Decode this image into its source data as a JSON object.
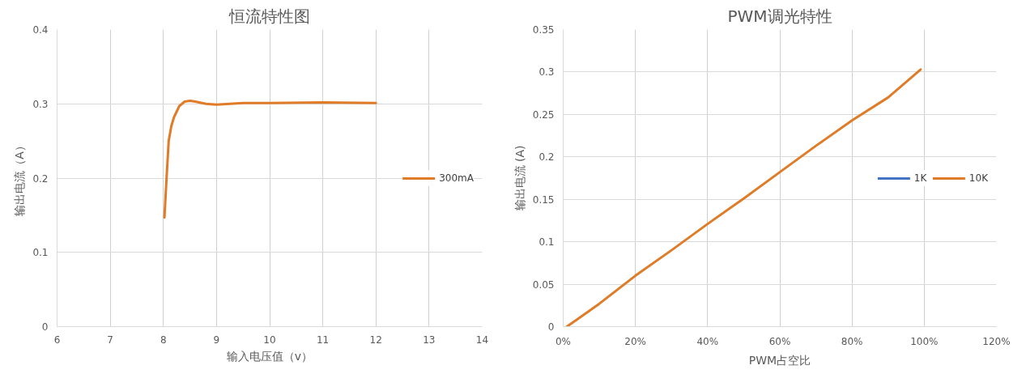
{
  "chart_data": [
    {
      "type": "line",
      "title": "恒流特性图",
      "xlabel": "输入电压值（v）",
      "ylabel": "输出电流（A）",
      "xlim": [
        6,
        14
      ],
      "xticks": [
        6,
        7,
        8,
        9,
        10,
        11,
        12,
        13,
        14
      ],
      "ylim": [
        0,
        0.4
      ],
      "yticks": [
        0,
        0.1,
        0.2,
        0.3,
        0.4
      ],
      "grid": true,
      "legend": "right",
      "x": [
        8.02,
        8.06,
        8.1,
        8.15,
        8.2,
        8.3,
        8.4,
        8.5,
        8.6,
        8.8,
        9.0,
        9.5,
        10,
        11,
        12
      ],
      "series": [
        {
          "name": "300mA",
          "color": "#e07b28",
          "values": [
            0.147,
            0.2,
            0.25,
            0.27,
            0.282,
            0.297,
            0.303,
            0.304,
            0.303,
            0.3,
            0.299,
            0.301,
            0.301,
            0.302,
            0.301
          ]
        }
      ]
    },
    {
      "type": "line",
      "title": "PWM调光特性",
      "xlabel": "PWM占空比",
      "ylabel": "输出电流 (A)",
      "xlim": [
        0,
        120
      ],
      "xticks": [
        {
          "value": 0,
          "label": "0%"
        },
        {
          "value": 20,
          "label": "20%"
        },
        {
          "value": 40,
          "label": "40%"
        },
        {
          "value": 60,
          "label": "60%"
        },
        {
          "value": 80,
          "label": "80%"
        },
        {
          "value": 100,
          "label": "100%"
        },
        {
          "value": 120,
          "label": "120%"
        }
      ],
      "ylim": [
        0,
        0.35
      ],
      "yticks": [
        0,
        0.05,
        0.1,
        0.15,
        0.2,
        0.25,
        0.3,
        0.35
      ],
      "grid": true,
      "legend": "right",
      "x": [
        1,
        5,
        10,
        20,
        30,
        40,
        50,
        60,
        70,
        80,
        90,
        99
      ],
      "series": [
        {
          "name": "1K",
          "color": "#4472c4",
          "values": [
            null,
            null,
            null,
            null,
            null,
            null,
            null,
            null,
            null,
            null,
            null,
            null
          ]
        },
        {
          "name": "10K",
          "color": "#e07b28",
          "values": [
            0,
            0.012,
            0.027,
            0.06,
            0.09,
            0.121,
            0.151,
            0.182,
            0.213,
            0.243,
            0.27,
            0.303
          ]
        }
      ]
    }
  ]
}
